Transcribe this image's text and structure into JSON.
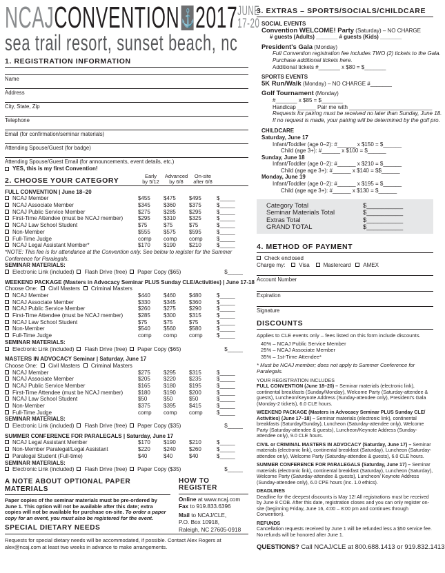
{
  "header": {
    "ncaj": "NCAJ",
    "convention": "CONVENTION",
    "year": "2017",
    "june": "JUNE",
    "dates": "17-20",
    "anchor_icon": "anchor-icon",
    "subtitle": "sea trail resort, sunset beach, nc"
  },
  "reg": {
    "title": "1. REGISTRATION INFORMATION",
    "fields": [
      "Name",
      "Address",
      "City, State, Zip",
      "Telephone",
      "Email (for confirmation/seminar materials)",
      "Attending Spouse/Guest (for badge)",
      "Attending Spouse/Guest Email (for announcements, event details, etc.)"
    ],
    "first": "YES, this is my first Convention!"
  },
  "cat": {
    "title": "2. CHOOSE YOUR CATEGORY",
    "cols": [
      [
        "Early",
        "by 5/12"
      ],
      [
        "Advanced",
        "by 6/8"
      ],
      [
        "On-site",
        "after 6/8"
      ]
    ],
    "blank": "$_____",
    "groups": [
      {
        "title": "FULL CONVENTION | June 18–20",
        "rows": [
          [
            "NCAJ Member",
            "$455",
            "$475",
            "$495"
          ],
          [
            "NCAJ Associate Member",
            "$345",
            "$360",
            "$375"
          ],
          [
            "NCAJ Public Service Member",
            "$275",
            "$285",
            "$295"
          ],
          [
            "First-Time Attendee (must be NCAJ member)",
            "$295",
            "$310",
            "$325"
          ],
          [
            "NCAJ Law School Student",
            "$75",
            "$75",
            "$75"
          ],
          [
            "Non-Member",
            "$555",
            "$575",
            "$595"
          ],
          [
            "Full-Time Judge",
            "comp",
            "comp",
            "comp"
          ],
          [
            "NCAJ Legal Assistant Member*",
            "$170",
            "$190",
            "$210"
          ]
        ],
        "note": "*NOTE: This fee is for attendance at the Convention only. See below to register for the Summer Conference for Paralegals.",
        "paper": "Paper Copy ($65)"
      },
      {
        "title": "WEEKEND PACKAGE (Masters in Advocacy Seminar PLUS Sunday CLE/Activities) | June 17-18",
        "choose": true,
        "rows": [
          [
            "NCAJ Member",
            "$440",
            "$460",
            "$480"
          ],
          [
            "NCAJ Associate Member",
            "$330",
            "$345",
            "$360"
          ],
          [
            "NCAJ Public Service Member",
            "$260",
            "$275",
            "$290"
          ],
          [
            "First-Time Attendee (must be NCAJ member)",
            "$285",
            "$300",
            "$315"
          ],
          [
            "NCAJ Law School Student",
            "$75",
            "$75",
            "$75"
          ],
          [
            "Non-Member",
            "$540",
            "$560",
            "$580"
          ],
          [
            "Full-Time Judge",
            "comp",
            "comp",
            "comp"
          ]
        ],
        "paper": "Paper Copy ($65)"
      },
      {
        "title": "MASTERS IN ADVOCACY Seminar | Saturday, June 17",
        "choose": true,
        "rows": [
          [
            "NCAJ Member",
            "$275",
            "$295",
            "$315"
          ],
          [
            "NCAJ Associate Member",
            "$205",
            "$220",
            "$235"
          ],
          [
            "NCAJ Public Service Member",
            "$165",
            "$180",
            "$195"
          ],
          [
            "First-Time Attendee (must be NCAJ member)",
            "$180",
            "$190",
            "$200"
          ],
          [
            "NCAJ Law School Student",
            "$50",
            "$50",
            "$50"
          ],
          [
            "Non-Member",
            "$375",
            "$395",
            "$415"
          ],
          [
            "Full-Time Judge",
            "comp",
            "comp",
            "comp"
          ]
        ],
        "paper": "Paper Copy ($35)"
      },
      {
        "title": "SUMMER CONFERENCE FOR PARALEGALS | Saturday, June 17",
        "rows": [
          [
            "NCAJ Legal Assistant Member",
            "$170",
            "$190",
            "$210"
          ],
          [
            "Non-Member Paralegal/Legal Assistant",
            "$220",
            "$240",
            "$260"
          ],
          [
            "Paralegal Student (Full-time)",
            "$40",
            "$40",
            "$40"
          ]
        ],
        "paper": "Paper Copy ($35)"
      }
    ],
    "seminar": "SEMINAR MATERIALS:",
    "electronic": "Electronic Link (included)",
    "flash": "Flash Drive (free)",
    "choose_label": "Choose One:",
    "civil": "Civil Masters",
    "criminal": "Criminal Masters"
  },
  "paper_note": {
    "title": "A NOTE ABOUT OPTIONAL PAPER MATERIALS",
    "text": "Paper copies of the seminar materials must be pre-ordered by June 1. This option will not be available after this date; extra copies will not be available for purchase on-site.",
    "italic": "To order a paper copy for an event, you must also be registered for the event."
  },
  "how": {
    "title": "HOW TO REGISTER",
    "online_b": "Online",
    "online": " at www.ncaj.com",
    "fax_b": "Fax",
    "fax": " to 919.833.6396",
    "mail_b": "Mail",
    "mail": " to NCAJ/CLE,",
    "addr1": "P.O. Box 10918,",
    "addr2": "Raleigh, NC  27605-0918"
  },
  "dietary": {
    "title": "SPECIAL DIETARY NEEDS",
    "text": "Requests for special dietary needs will be accommodated, if possible. Contact Alex Rogers at alex@ncaj.com at least two weeks in advance to make arrangements."
  },
  "extras": {
    "title": "3. EXTRAS – SPORTS/SOCIALS/CHILDCARE",
    "social": "SOCIAL EVENTS",
    "welcome_b": "Convention WELCOME! Party",
    "welcome": " (Saturday) – NO CHARGE",
    "guests": "# guests (Adults) _______ # guests (Kids) _______",
    "gala_b": "President's Gala",
    "gala": " (Monday)",
    "gala_note1": "Full Convention registration fee includes TWO (2) tickets to the Gala.",
    "gala_note2": "Purchase additional tickets here.",
    "gala_tickets": "Additional tickets #_______ x $80 = $_______",
    "sports": "SPORTS EVENTS",
    "run_b": "5K Run/Walk",
    "run": " (Monday) – NO CHARGE #_______",
    "golf_b": "Golf Tournament",
    "golf": " (Monday)",
    "golf_line": "#_______ x $85 = $_______",
    "handicap": "Handicap ______  Pair me with ___________________________",
    "golf_note1": "Requests for pairing must be received no later than Sunday, June 18.",
    "golf_note2": "If no request is made, your pairing will be determined by the golf pro.",
    "childcare": "CHILDCARE",
    "days": [
      {
        "day": "Saturday, June 17",
        "lines": [
          "Infant/Toddler (age 0–2): #______ x $150 = $______",
          "Child (age 3+): #______ x $100 = $______"
        ]
      },
      {
        "day": "Sunday, June 18",
        "lines": [
          "Infant/Toddler (age 0–2): #______ x $210 = $______",
          "Child (age age 3+): #______ x $140 = $$______"
        ]
      },
      {
        "day": "Monday, June 19",
        "lines": [
          "Infant/Toddler (age 0–2): #______ x $195 = $______",
          "Child (age age 3+): #______ x $130 = $______"
        ]
      }
    ]
  },
  "totals": [
    [
      "Category Total",
      "$__________"
    ],
    [
      "Seminar Materials Total",
      "$__________"
    ],
    [
      "Extras Total",
      "$__________"
    ],
    [
      "GRAND TOTAL",
      "$__________"
    ]
  ],
  "payment": {
    "title": "4. METHOD OF PAYMENT",
    "check": "Check enclosed",
    "charge": "Charge my:",
    "visa": "Visa",
    "mc": "Mastercard",
    "amex": "AMEX",
    "fields": [
      "Account Number",
      "Expiration",
      "Signature"
    ]
  },
  "discounts": {
    "title": "DISCOUNTS",
    "intro": "Applies to CLE events only – fees listed on this form include discounts.",
    "items": [
      "40% – NCAJ Public Service Member",
      "25% – NCAJ Associate Member",
      "35% – 1st-Time Attendee*"
    ],
    "note": "* Must be NCAJ member; does not apply to Summer Conference for Paralegals.",
    "includes": "YOUR REGISTRATION INCLUDES",
    "blocks": [
      [
        "FULL CONVENTION (June 18–20) –",
        " Seminar materials (electronic link), continental breakfasts (Sunday/Monday), Welcome Party (Saturday-attendee & guests), Luncheon/Keynote Address (Sunday-attendee only), President's Gala (Monday-2 tickets), 6.0 CLE hours."
      ],
      [
        "WEEKEND PACKAGE (Masters in Advocacy Seminar PLUS Sunday CLE/ Activities) (June 17–18) –",
        " Seminar materials (electronic link), continental breakfasts (Saturday/Sunday),  Luncheon (Saturday-attendee only), Welcome Party (Saturday-attendee & guests), Luncheon/Keynote Address (Sunday-attendee only), 9.0 CLE hours."
      ],
      [
        "CIVIL or CRIMINAL MASTERS IN ADVOCACY (Saturday, June 17) –",
        " Seminar materials (electronic link), continental breakfast (Saturday), Luncheon (Saturday-attendee only), Welcome Party (Saturday-attendee & guests), 6.0 CLE hours."
      ],
      [
        "SUMMER CONFERENCE FOR PARALEGALS (Saturday, June 17) –",
        " Seminar materials (electronic link), continental breakfast (Saturday), Luncheon (Saturday), Welcome Party (Saturday-attendee & guests), Luncheon/ Keynote Address (Sunday-attendee only), 6.0 CPE hours (inc. 1.0 ethics)."
      ]
    ],
    "deadlines_t": "DEADLINES",
    "deadlines": "Deadline for the deepest discounts is May 12! All registrations must be received by June 8 COB. After this date, registration closes and you can only register on-site (beginning Friday, June 16, 4:00 – 8:00 pm and continues through Convention).",
    "refunds_t": "REFUNDS",
    "refunds": "Cancellation requests received by June 1 will be refunded less a $50 service fee. No refunds will be honored after June 1."
  },
  "questions": {
    "b": "QUESTIONS?",
    "text": " Call NCAJ/CLE at 800.688.1413 or 919.832.1413"
  }
}
